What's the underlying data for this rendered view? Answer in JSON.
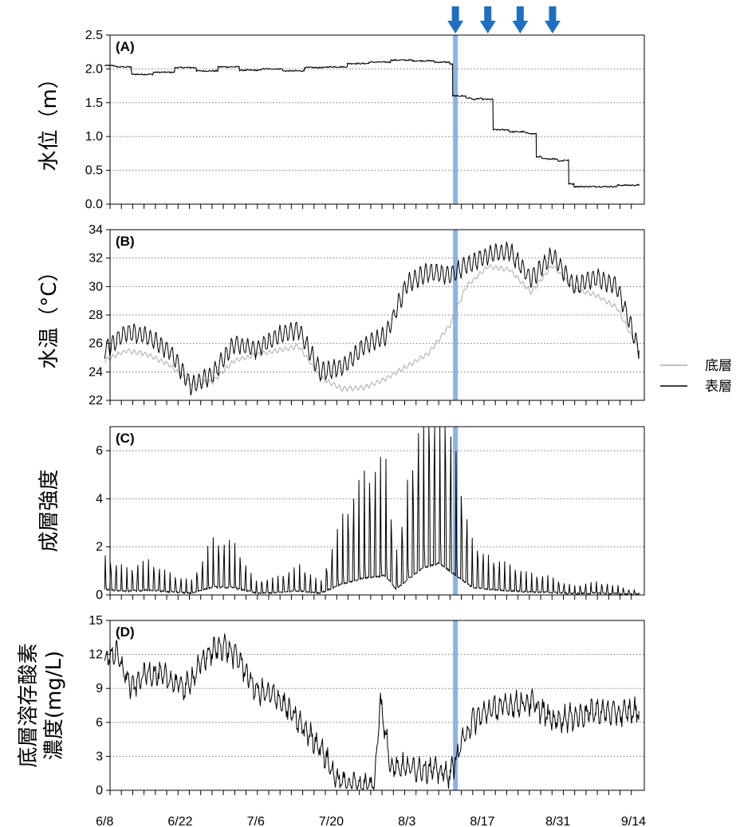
{
  "chart_data": [
    {
      "id": "A",
      "type": "line",
      "panel_label": "(A)",
      "ylabel": "水位（m）",
      "ylim": [
        0,
        2.5
      ],
      "yticks": [
        "0.0",
        "0.5",
        "1.0",
        "1.5",
        "2.0",
        "2.5"
      ],
      "grid": true,
      "series": [
        {
          "color": "#000000",
          "x": [
            "6/8",
            "6/10",
            "6/13",
            "6/17",
            "6/21",
            "6/25",
            "6/29",
            "7/3",
            "7/7",
            "7/11",
            "7/15",
            "7/19",
            "7/23",
            "7/27",
            "7/31",
            "8/4",
            "8/8",
            "8/11",
            "8/11.5",
            "8/14",
            "8/15",
            "8/16",
            "8/17",
            "8/19",
            "8/22",
            "8/25",
            "8/26",
            "8/27",
            "8/28",
            "8/31",
            "9/1",
            "9/2",
            "9/3",
            "9/7",
            "9/11",
            "9/15"
          ],
          "values": [
            2.05,
            2.03,
            1.92,
            1.95,
            2.02,
            1.97,
            2.03,
            1.98,
            2.0,
            1.97,
            2.02,
            2.03,
            2.08,
            2.1,
            2.13,
            2.12,
            2.1,
            2.07,
            1.6,
            1.57,
            1.55,
            1.56,
            1.55,
            1.1,
            1.07,
            1.05,
            1.04,
            0.7,
            0.67,
            0.64,
            0.65,
            0.3,
            0.26,
            0.26,
            0.28,
            0.3
          ]
        }
      ],
      "annotations": {
        "event_day": "8/12",
        "drawdown_arrows": [
          "8/12",
          "8/18",
          "8/24",
          "8/30"
        ]
      }
    },
    {
      "id": "B",
      "type": "line",
      "panel_label": "(B)",
      "ylabel": "水温（°C）",
      "ylim": [
        22,
        34
      ],
      "yticks": [
        "22",
        "24",
        "26",
        "28",
        "30",
        "32",
        "34"
      ],
      "grid": true,
      "series": [
        {
          "name": "底層",
          "color": "#aaaaaa",
          "x": [
            "6/8",
            "6/12",
            "6/16",
            "6/20",
            "6/24",
            "6/28",
            "7/2",
            "7/6",
            "7/10",
            "7/14",
            "7/18",
            "7/22",
            "7/26",
            "7/30",
            "8/3",
            "8/7",
            "8/11",
            "8/14",
            "8/18",
            "8/22",
            "8/26",
            "8/30",
            "9/3",
            "9/7",
            "9/11",
            "9/15"
          ],
          "values": [
            24.8,
            25.5,
            25.2,
            24.5,
            23.2,
            23.3,
            24.8,
            25.2,
            25.5,
            25.8,
            23.6,
            22.8,
            22.9,
            23.5,
            24.4,
            25.3,
            27.3,
            30.0,
            31.4,
            31.2,
            29.6,
            31.5,
            29.8,
            29.4,
            28.5,
            25.5
          ]
        },
        {
          "name": "表層",
          "color": "#000000",
          "x": [
            "6/8",
            "6/12",
            "6/16",
            "6/20",
            "6/24",
            "6/28",
            "7/2",
            "7/6",
            "7/10",
            "7/14",
            "7/18",
            "7/22",
            "7/26",
            "7/30",
            "8/3",
            "8/7",
            "8/11",
            "8/14",
            "8/18",
            "8/22",
            "8/26",
            "8/30",
            "9/3",
            "9/7",
            "9/11",
            "9/15"
          ],
          "values": [
            25.5,
            26.8,
            26.5,
            25.5,
            23.0,
            23.8,
            26.0,
            25.6,
            26.5,
            27.0,
            24.0,
            24.3,
            25.8,
            26.5,
            30.2,
            31.0,
            30.8,
            31.5,
            32.2,
            32.5,
            30.5,
            32.2,
            30.0,
            30.6,
            30.0,
            25.5
          ]
        }
      ]
    },
    {
      "id": "C",
      "type": "line",
      "panel_label": "(C)",
      "ylabel": "成層強度",
      "ylim": [
        0,
        7
      ],
      "yticks": [
        "0",
        "2",
        "4",
        "6"
      ],
      "grid": true,
      "series": [
        {
          "color": "#000000",
          "x": [
            "6/8",
            "6/12",
            "6/16",
            "6/20",
            "6/24",
            "6/28",
            "7/2",
            "7/6",
            "7/10",
            "7/14",
            "7/18",
            "7/22",
            "7/26",
            "7/30",
            "8/1",
            "8/3",
            "8/6",
            "8/9",
            "8/12",
            "8/15",
            "8/18",
            "8/22",
            "8/26",
            "8/30",
            "9/3",
            "9/7",
            "9/11",
            "9/15"
          ],
          "values": [
            0.9,
            0.6,
            0.8,
            0.5,
            0.3,
            1.3,
            1.2,
            0.3,
            0.4,
            0.7,
            0.3,
            1.8,
            2.8,
            3.2,
            0.9,
            2.5,
            4.5,
            5.3,
            3.3,
            1.3,
            0.9,
            0.7,
            0.5,
            0.4,
            0.2,
            0.3,
            0.2,
            0.1
          ]
        }
      ]
    },
    {
      "id": "D",
      "type": "line",
      "panel_label": "(D)",
      "ylabel": "底層溶存酸素濃度(mg/L)",
      "ylim": [
        0,
        15
      ],
      "yticks": [
        "0",
        "3",
        "6",
        "9",
        "12",
        "15"
      ],
      "grid": true,
      "xlabels": [
        "6/8",
        "6/22",
        "7/6",
        "7/20",
        "8/3",
        "8/17",
        "8/31",
        "9/14"
      ],
      "series": [
        {
          "color": "#000000",
          "x": [
            "6/8",
            "6/10",
            "6/13",
            "6/16",
            "6/20",
            "6/23",
            "6/27",
            "6/30",
            "7/3",
            "7/6",
            "7/10",
            "7/14",
            "7/18",
            "7/21",
            "7/25",
            "7/28",
            "7/29",
            "7/31",
            "8/3",
            "8/7",
            "8/11",
            "8/13",
            "8/15",
            "8/18",
            "8/22",
            "8/26",
            "8/30",
            "9/3",
            "9/7",
            "9/11",
            "9/15"
          ],
          "values": [
            11.5,
            12.2,
            9.0,
            10.5,
            9.8,
            9.0,
            12.0,
            12.8,
            11.5,
            8.8,
            8.2,
            6.0,
            3.8,
            0.9,
            0.5,
            0.3,
            8.0,
            2.2,
            2.0,
            1.9,
            1.4,
            4.0,
            6.0,
            7.0,
            7.5,
            7.8,
            6.2,
            6.5,
            7.0,
            6.8,
            7.0
          ]
        }
      ]
    }
  ],
  "legend": {
    "items": [
      "底層",
      "表層"
    ],
    "colors": [
      "#aaaaaa",
      "#000000"
    ]
  },
  "colors": {
    "event_bar": "#8fb1e3",
    "arrow": "#1f6fbf",
    "grid": "#777777"
  }
}
